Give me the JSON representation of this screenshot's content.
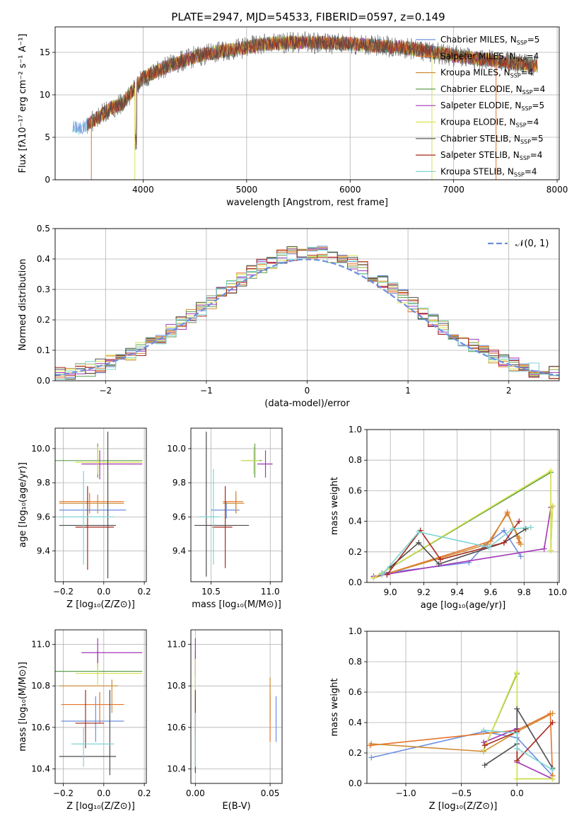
{
  "figure_title": "PLATE=2947, MJD=54533, FIBERID=0597, z=0.149",
  "colors": [
    "#6c8ede",
    "#e7742a",
    "#cf8b34",
    "#5f9e4f",
    "#a336b8",
    "#d9e34f",
    "#4d4d4d",
    "#a8271c",
    "#7fd4d4"
  ],
  "chart_data": [
    {
      "id": "spectrum",
      "type": "line",
      "xlabel": "wavelength [Angstrom, rest frame]",
      "ylabel": "Flux [fλ10⁻¹⁷ erg cm⁻² s⁻¹ A⁻¹]",
      "xlim": [
        3150,
        8020
      ],
      "ylim": [
        0,
        18
      ],
      "xticks": [
        "4000",
        "5000",
        "6000",
        "7000",
        "8000"
      ],
      "yticks": [
        "0",
        "5",
        "10",
        "15"
      ],
      "x_range": [
        3320,
        7810
      ],
      "continuum": {
        "x": [
          3320,
          3400,
          3500,
          3700,
          3800,
          4000,
          4200,
          4500,
          4800,
          5200,
          5500,
          6000,
          6500,
          7000,
          7400,
          7810
        ],
        "y": [
          6.3,
          6.0,
          6.8,
          8.5,
          9.0,
          12.0,
          13.2,
          14.5,
          15.2,
          16.0,
          16.2,
          16.0,
          15.6,
          14.6,
          14.0,
          13.4
        ]
      },
      "legend": [
        {
          "label": "Chabrier MILES, N",
          "n": "5"
        },
        {
          "label": "Salpeter MILES, N",
          "n": "4"
        },
        {
          "label": "Kroupa MILES, N",
          "n": "4"
        },
        {
          "label": "Chabrier ELODIE, N",
          "n": "4"
        },
        {
          "label": "Salpeter ELODIE, N",
          "n": "5"
        },
        {
          "label": "Kroupa ELODIE, N",
          "n": "4"
        },
        {
          "label": "Chabrier STELIB, N",
          "n": "5"
        },
        {
          "label": "Salpeter STELIB, N",
          "n": "4"
        },
        {
          "label": "Kroupa STELIB, N",
          "n": "4"
        }
      ],
      "legend_sub": "SSP"
    },
    {
      "id": "residuals",
      "type": "step",
      "xlabel": "(data-model)/error",
      "ylabel": "Normed distribution",
      "xlim": [
        -2.5,
        2.5
      ],
      "ylim": [
        0,
        0.5
      ],
      "xticks": [
        "−2",
        "−1",
        "0",
        "1",
        "2"
      ],
      "yticks": [
        "0.0",
        "0.1",
        "0.2",
        "0.3",
        "0.4",
        "0.5"
      ],
      "bin_width": 0.1,
      "legend_label": "𝒩(0, 1)",
      "normal_color": "#6c8ede"
    },
    {
      "id": "age-vs-Z",
      "type": "errorbar",
      "xlabel": "Z [log₁₀(Z/Z⊙)]",
      "ylabel": "age  [log₁₀(age/yr)]",
      "xlim": [
        -0.24,
        0.21
      ],
      "ylim": [
        9.22,
        10.12
      ],
      "xticks": [
        "−0.2",
        "0.0",
        "0.2"
      ],
      "yticks": [
        "9.4",
        "9.6",
        "9.8",
        "10.0"
      ],
      "points": [
        {
          "x": 0.02,
          "y": 9.64,
          "xl": -0.22,
          "xh": 0.11,
          "yl": 9.59,
          "yh": 9.69
        },
        {
          "x": -0.07,
          "y": 9.69,
          "xl": -0.22,
          "xh": 0.1,
          "yl": 9.62,
          "yh": 9.74
        },
        {
          "x": -0.03,
          "y": 9.68,
          "xl": -0.22,
          "xh": 0.1,
          "yl": 9.62,
          "yh": 9.73
        },
        {
          "x": -0.03,
          "y": 9.93,
          "xl": -0.24,
          "xh": 0.19,
          "yl": 9.83,
          "yh": 10.03
        },
        {
          "x": -0.02,
          "y": 9.91,
          "xl": -0.11,
          "xh": 0.19,
          "yl": 9.82,
          "yh": 9.99
        },
        {
          "x": -0.03,
          "y": 9.92,
          "xl": -0.14,
          "xh": 0.19,
          "yl": 9.85,
          "yh": 10.01
        },
        {
          "x": 0.02,
          "y": 9.55,
          "xl": -0.22,
          "xh": 0.06,
          "yl": 9.24,
          "yh": 10.1
        },
        {
          "x": -0.08,
          "y": 9.54,
          "xl": -0.14,
          "xh": 0.05,
          "yl": 9.29,
          "yh": 9.78
        },
        {
          "x": -0.1,
          "y": 9.6,
          "xl": -0.22,
          "xh": 0.05,
          "yl": 9.32,
          "yh": 9.87
        }
      ]
    },
    {
      "id": "age-vs-mass",
      "type": "errorbar",
      "xlabel": "mass [log₁₀(M/M⊙)]",
      "ylabel": "",
      "xlim": [
        10.33,
        11.1
      ],
      "ylim": [
        9.22,
        10.12
      ],
      "xticks": [
        "10.5",
        "11.0"
      ],
      "yticks": [
        "9.4",
        "9.6",
        "9.8",
        "10.0"
      ],
      "points": [
        {
          "x": 10.63,
          "y": 9.64,
          "xl": 10.5,
          "xh": 10.74,
          "yl": 9.59,
          "yh": 9.69
        },
        {
          "x": 10.71,
          "y": 9.69,
          "xl": 10.6,
          "xh": 10.77,
          "yl": 9.62,
          "yh": 9.75
        },
        {
          "x": 10.71,
          "y": 9.68,
          "xl": 10.6,
          "xh": 10.78,
          "yl": 9.62,
          "yh": 9.73
        },
        {
          "x": 10.87,
          "y": 9.93,
          "xl": 10.76,
          "xh": 10.93,
          "yl": 9.83,
          "yh": 10.03
        },
        {
          "x": 10.96,
          "y": 9.91,
          "xl": 10.89,
          "xh": 11.02,
          "yl": 9.83,
          "yh": 9.99
        },
        {
          "x": 10.86,
          "y": 9.93,
          "xl": 10.75,
          "xh": 10.91,
          "yl": 9.85,
          "yh": 10.01
        },
        {
          "x": 10.46,
          "y": 9.55,
          "xl": 10.36,
          "xh": 10.82,
          "yl": 9.25,
          "yh": 10.1
        },
        {
          "x": 10.62,
          "y": 9.54,
          "xl": 10.51,
          "xh": 10.68,
          "yl": 9.3,
          "yh": 9.78
        },
        {
          "x": 10.52,
          "y": 9.6,
          "xl": 10.4,
          "xh": 10.57,
          "yl": 9.32,
          "yh": 9.88
        }
      ]
    },
    {
      "id": "weight-vs-age",
      "type": "line",
      "xlabel": "age  [log₁₀(age/yr)]",
      "ylabel": "mass weight",
      "xlim": [
        8.86,
        10.01
      ],
      "ylim": [
        0,
        1
      ],
      "xticks": [
        "9.0",
        "9.2",
        "9.4",
        "9.6",
        "9.8",
        "10.0"
      ],
      "yticks": [
        "0.0",
        "0.2",
        "0.4",
        "0.6",
        "0.8",
        "1.0"
      ],
      "series": [
        {
          "x": [
            8.95,
            9.47,
            9.56,
            9.68,
            9.78
          ],
          "y": [
            0.06,
            0.13,
            0.24,
            0.34,
            0.17
          ]
        },
        {
          "x": [
            8.9,
            9.6,
            9.7,
            9.76,
            9.77
          ],
          "y": [
            0.03,
            0.27,
            0.46,
            0.3,
            0.26
          ]
        },
        {
          "x": [
            8.9,
            9.58,
            9.7,
            9.77,
            9.78
          ],
          "y": [
            0.03,
            0.25,
            0.45,
            0.29,
            0.25
          ]
        },
        {
          "x": [
            8.9,
            9.96,
            9.96,
            9.97
          ],
          "y": [
            0.03,
            0.72,
            0.21,
            0.5
          ]
        },
        {
          "x": [
            8.9,
            9.92,
            9.96,
            9.97
          ],
          "y": [
            0.04,
            0.22,
            0.49,
            0.5
          ]
        },
        {
          "x": [
            8.9,
            9.96,
            9.96,
            9.97
          ],
          "y": [
            0.03,
            0.73,
            0.21,
            0.5
          ]
        },
        {
          "x": [
            9.0,
            9.17,
            9.29,
            9.68,
            9.81
          ],
          "y": [
            0.1,
            0.26,
            0.12,
            0.26,
            0.35
          ]
        },
        {
          "x": [
            8.98,
            9.18,
            9.3,
            9.68,
            9.77
          ],
          "y": [
            0.05,
            0.34,
            0.15,
            0.26,
            0.4
          ]
        },
        {
          "x": [
            8.95,
            9.17,
            9.59,
            9.73,
            9.84
          ],
          "y": [
            0.05,
            0.33,
            0.23,
            0.35,
            0.36
          ]
        }
      ]
    },
    {
      "id": "mass-vs-Z",
      "type": "errorbar",
      "xlabel": "Z [log₁₀(Z/Z⊙)]",
      "ylabel": "mass [log₁₀(M/M⊙)]",
      "xlim": [
        -0.24,
        0.21
      ],
      "ylim": [
        10.33,
        11.07
      ],
      "xticks": [
        "−0.2",
        "0.0",
        "0.2"
      ],
      "yticks": [
        "10.4",
        "10.6",
        "10.8",
        "11.0"
      ],
      "points": [
        {
          "x": -0.04,
          "y": 10.63,
          "xl": -0.21,
          "xh": 0.1,
          "yl": 10.53,
          "yh": 10.75
        },
        {
          "x": -0.02,
          "y": 10.71,
          "xl": -0.21,
          "xh": 0.1,
          "yl": 10.62,
          "yh": 10.77
        },
        {
          "x": 0.04,
          "y": 10.8,
          "xl": -0.22,
          "xh": 0.07,
          "yl": 10.67,
          "yh": 10.83
        },
        {
          "x": -0.03,
          "y": 10.87,
          "xl": -0.24,
          "xh": 0.19,
          "yl": 10.85,
          "yh": 10.97
        },
        {
          "x": -0.03,
          "y": 10.96,
          "xl": -0.11,
          "xh": 0.19,
          "yl": 10.89,
          "yh": 11.03
        },
        {
          "x": -0.03,
          "y": 10.86,
          "xl": -0.14,
          "xh": 0.19,
          "yl": 10.8,
          "yh": 10.91
        },
        {
          "x": 0.03,
          "y": 10.46,
          "xl": -0.22,
          "xh": 0.06,
          "yl": 10.37,
          "yh": 10.78
        },
        {
          "x": -0.09,
          "y": 10.62,
          "xl": -0.14,
          "xh": 0.0,
          "yl": 10.5,
          "yh": 10.78
        },
        {
          "x": -0.1,
          "y": 10.52,
          "xl": -0.16,
          "xh": 0.05,
          "yl": 10.41,
          "yh": 10.6
        }
      ]
    },
    {
      "id": "mass-vs-EBV",
      "type": "errorbar",
      "xlabel": "E(B-V)",
      "ylabel": "",
      "xlim": [
        -0.003,
        0.058
      ],
      "ylim": [
        10.33,
        11.07
      ],
      "xticks": [
        "0.00",
        "0.05"
      ],
      "yticks": [
        "10.4",
        "10.6",
        "10.8",
        "11.0"
      ],
      "points": [
        {
          "x": 0.054,
          "y": 10.63,
          "xl": 0.054,
          "xh": 0.054,
          "yl": 10.53,
          "yh": 10.75
        },
        {
          "x": 0.05,
          "y": 10.71,
          "xl": 0.05,
          "xh": 0.05,
          "yl": 10.53,
          "yh": 10.77
        },
        {
          "x": 0.05,
          "y": 10.8,
          "xl": 0.05,
          "xh": 0.05,
          "yl": 10.64,
          "yh": 10.84
        },
        {
          "x": 0.0,
          "y": 10.87,
          "xl": 0.0,
          "xh": 0.0,
          "yl": 10.6,
          "yh": 10.97
        },
        {
          "x": 0.0,
          "y": 10.96,
          "xl": 0.0,
          "xh": 0.0,
          "yl": 10.85,
          "yh": 11.03
        },
        {
          "x": 0.0,
          "y": 10.86,
          "xl": 0.0,
          "xh": 0.0,
          "yl": 10.74,
          "yh": 10.93
        },
        {
          "x": 0.0,
          "y": 10.46,
          "xl": 0.0,
          "xh": 0.0,
          "yl": 10.38,
          "yh": 10.6
        },
        {
          "x": 0.0,
          "y": 10.62,
          "xl": 0.0,
          "xh": 0.0,
          "yl": 10.55,
          "yh": 10.78
        },
        {
          "x": 0.0,
          "y": 10.52,
          "xl": 0.0,
          "xh": 0.0,
          "yl": 10.41,
          "yh": 10.67
        }
      ]
    },
    {
      "id": "weight-vs-Z",
      "type": "line",
      "xlabel": "Z [log₁₀(Z/Z⊙)]",
      "ylabel": "mass weight",
      "xlim": [
        -1.35,
        0.38
      ],
      "ylim": [
        0,
        1
      ],
      "xticks": [
        "−1.0",
        "−0.5",
        "0.0"
      ],
      "yticks": [
        "0.0",
        "0.2",
        "0.4",
        "0.6",
        "0.8",
        "1.0"
      ],
      "series": [
        {
          "x": [
            -1.31,
            -0.3,
            0.0,
            0.32
          ],
          "y": [
            0.17,
            0.34,
            0.3,
            0.05
          ]
        },
        {
          "x": [
            -1.32,
            0.0,
            0.3,
            0.32
          ],
          "y": [
            0.25,
            0.35,
            0.46,
            0.05
          ]
        },
        {
          "x": [
            -1.31,
            -0.3,
            0.0,
            0.32
          ],
          "y": [
            0.26,
            0.21,
            0.34,
            0.46
          ]
        },
        {
          "x": [
            -0.3,
            0.0,
            0.0,
            0.32
          ],
          "y": [
            0.22,
            0.72,
            0.03,
            0.03
          ]
        },
        {
          "x": [
            -0.3,
            0.0,
            0.0,
            0.32
          ],
          "y": [
            0.27,
            0.36,
            0.14,
            0.03
          ]
        },
        {
          "x": [
            -0.3,
            0.0,
            0.0,
            0.32
          ],
          "y": [
            0.22,
            0.73,
            0.03,
            0.03
          ]
        },
        {
          "x": [
            -0.29,
            0.0,
            0.0,
            0.32
          ],
          "y": [
            0.12,
            0.26,
            0.49,
            0.1
          ]
        },
        {
          "x": [
            -0.29,
            0.0,
            0.0,
            0.32
          ],
          "y": [
            0.25,
            0.34,
            0.15,
            0.4
          ]
        },
        {
          "x": [
            -0.3,
            0.0,
            0.0,
            0.32
          ],
          "y": [
            0.35,
            0.33,
            0.23,
            0.09
          ]
        }
      ]
    }
  ]
}
